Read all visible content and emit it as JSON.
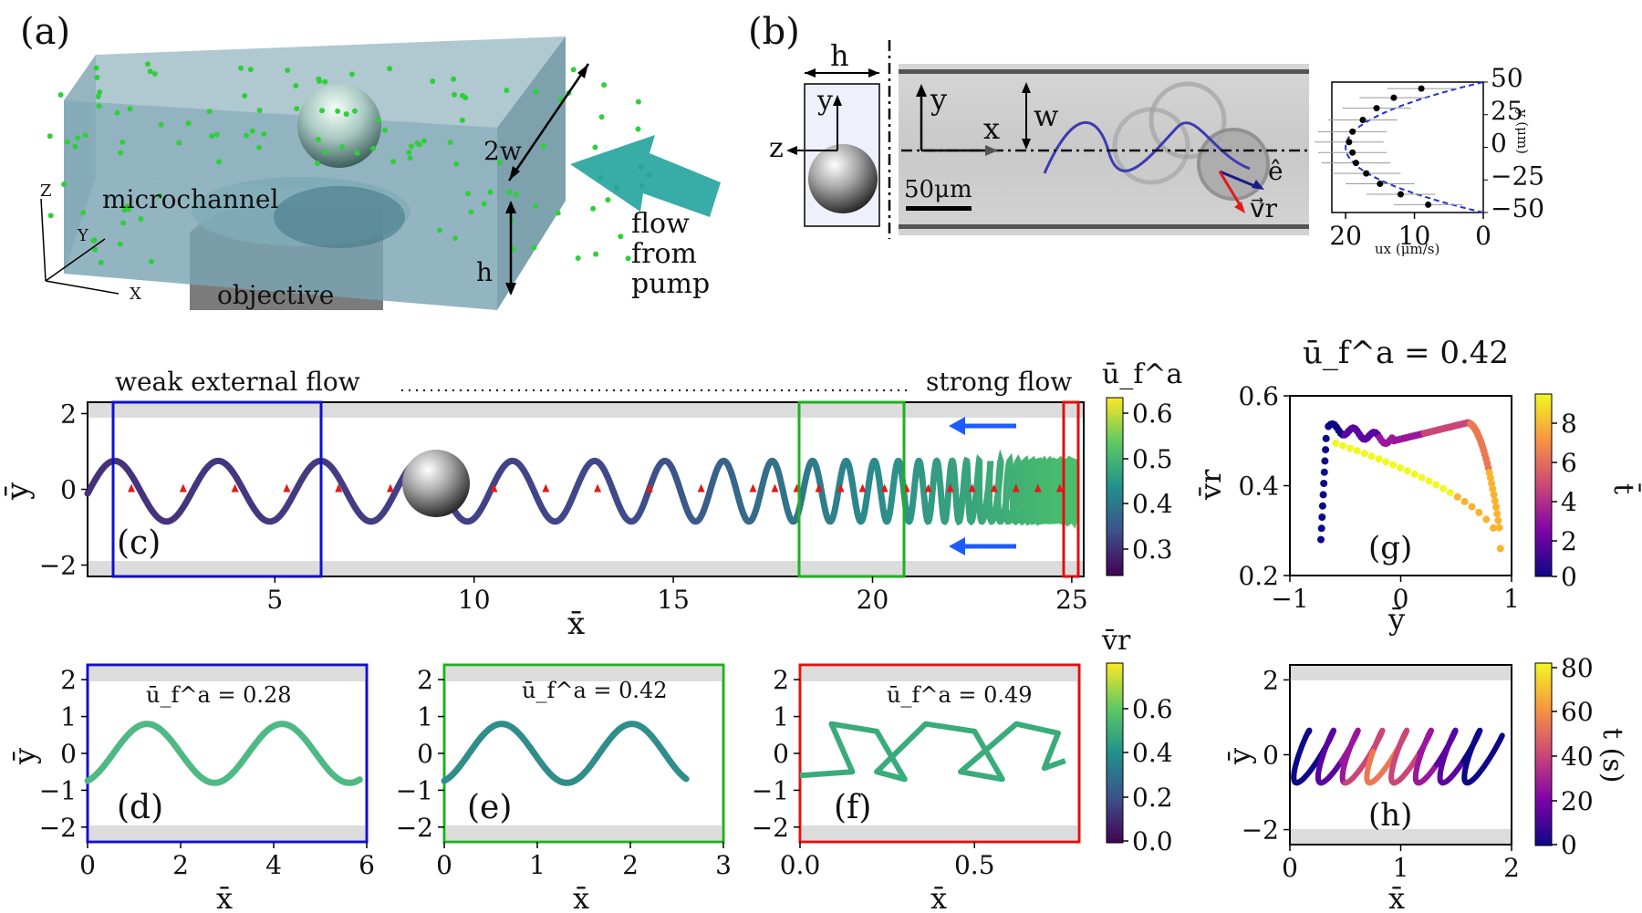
{
  "panels": {
    "a": {
      "letter": "(a)",
      "labels": {
        "channel": "microchannel",
        "objective": "objective",
        "flow1": "flow",
        "flow2": "from",
        "flow3": "pump",
        "w2": "2w",
        "h": "h",
        "Z": "Z",
        "Y": "Y",
        "X": "X"
      }
    },
    "b": {
      "letter": "(b)",
      "labels": {
        "h": "h",
        "y_side": "y",
        "z": "z",
        "y": "y",
        "x": "x",
        "w": "w",
        "scale": "50μm",
        "e": "ê",
        "v": "v⃗r"
      },
      "profile": {
        "xlabel": "ux (μm/s)",
        "ylabel": "y (μm)",
        "xticks": [
          "20",
          "10",
          "0"
        ],
        "yticks": [
          "50",
          "25",
          "0",
          "−25",
          "−50"
        ],
        "points": [
          [
            9,
            45
          ],
          [
            13,
            38
          ],
          [
            15.5,
            30
          ],
          [
            17.5,
            21
          ],
          [
            19,
            12
          ],
          [
            19.5,
            4
          ],
          [
            19,
            -4
          ],
          [
            18.5,
            -12
          ],
          [
            17,
            -20
          ],
          [
            15,
            -28
          ],
          [
            12,
            -36
          ],
          [
            8,
            -44
          ]
        ]
      }
    },
    "c": {
      "letter": "(c)",
      "annot_weak": "weak external flow",
      "annot_strong": "strong flow",
      "xlabel": "x̄",
      "ylabel": "ȳ",
      "xticks": [
        "5",
        "10",
        "15",
        "20",
        "25"
      ],
      "yticks": [
        "2",
        "0",
        "−2"
      ],
      "colorbar": {
        "label": "ū_f^a",
        "ticks": [
          "0.6",
          "0.5",
          "0.4",
          "0.3"
        ]
      }
    },
    "d": {
      "letter": "(d)",
      "title": "ū_f^a = 0.28",
      "xticks": [
        "0",
        "2",
        "4",
        "6"
      ],
      "yticks": [
        "2",
        "1",
        "0",
        "−1",
        "−2"
      ],
      "xlabel": "x̄",
      "ylabel": "ȳ"
    },
    "e": {
      "letter": "(e)",
      "title": "ū_f^a = 0.42",
      "xticks": [
        "0",
        "1",
        "2",
        "3"
      ],
      "yticks": [
        "2",
        "1",
        "0",
        "−1",
        "−2"
      ],
      "xlabel": "x̄"
    },
    "f": {
      "letter": "(f)",
      "title": "ū_f^a = 0.49",
      "xticks": [
        "0.0",
        "0.5"
      ],
      "yticks": [
        "2",
        "1",
        "0",
        "−1",
        "−2"
      ],
      "xlabel": "x̄",
      "colorbar": {
        "label": "v̄r",
        "ticks": [
          "0.6",
          "0.4",
          "0.2",
          "0.0"
        ]
      }
    },
    "g": {
      "letter": "(g)",
      "title": "ū_f^a = 0.42",
      "xlabel": "ȳ",
      "ylabel": "v̄r",
      "xticks": [
        "−1",
        "0",
        "1"
      ],
      "yticks": [
        "0.6",
        "0.4",
        "0.2"
      ],
      "colorbar": {
        "label": "t̄",
        "ticks": [
          "8",
          "6",
          "4",
          "2",
          "0"
        ]
      }
    },
    "h": {
      "letter": "(h)",
      "xlabel": "x̄",
      "ylabel": "ȳ",
      "xticks": [
        "0",
        "1",
        "2"
      ],
      "yticks": [
        "2",
        "0",
        "−2"
      ],
      "colorbar": {
        "label": "t (s)",
        "ticks": [
          "80",
          "60",
          "40",
          "20",
          "0"
        ]
      }
    }
  },
  "colors": {
    "blue_box": "#1010d0",
    "green_box": "#20b020",
    "red_box": "#e01010",
    "arrow_blue": "#1e5bff",
    "wall": "#dcdcdc"
  }
}
